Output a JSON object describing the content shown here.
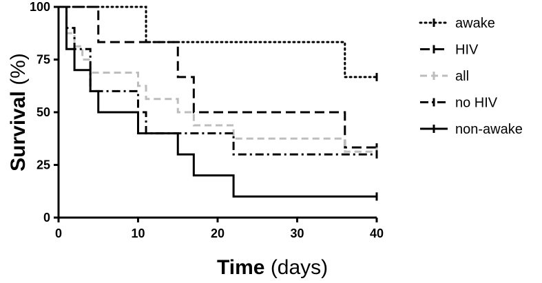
{
  "chart_data": {
    "type": "line",
    "step": "post",
    "xlabel_bold": "Time",
    "xlabel_rest": " (days)",
    "ylabel_bold": "Survival",
    "ylabel_rest": " (%)",
    "xlim": [
      0,
      40
    ],
    "ylim": [
      0,
      100
    ],
    "xticks": [
      0,
      10,
      20,
      30,
      40
    ],
    "yticks": [
      0,
      25,
      50,
      75,
      100
    ],
    "xtick_labels": [
      "0",
      "10",
      "20",
      "30",
      "40"
    ],
    "ytick_labels": [
      "0",
      "25",
      "50",
      "75",
      "100"
    ],
    "grid": false,
    "legend_position": "right",
    "series": [
      {
        "name": "awake",
        "style": "dotted",
        "color": "#000000",
        "x": [
          0,
          11,
          36,
          40
        ],
        "y": [
          100,
          83.3,
          66.7,
          66.7
        ]
      },
      {
        "name": "HIV",
        "style": "dashed",
        "color": "#000000",
        "x": [
          0,
          5,
          15,
          17,
          36,
          40
        ],
        "y": [
          100,
          83.3,
          66.7,
          50,
          33.3,
          33.3
        ]
      },
      {
        "name": "all",
        "style": "dashed-light",
        "color": "#bdbdbd",
        "x": [
          0,
          1,
          2,
          3,
          4,
          5,
          10,
          11,
          15,
          17,
          22,
          36,
          40
        ],
        "y": [
          100,
          87.5,
          81.3,
          75,
          68.8,
          68.8,
          62.5,
          56.3,
          50,
          43.8,
          37.5,
          31.3,
          31.3
        ]
      },
      {
        "name": "no HIV",
        "style": "dashdot",
        "color": "#000000",
        "x": [
          0,
          1,
          2,
          4,
          10,
          11,
          22,
          40
        ],
        "y": [
          100,
          90,
          80,
          60,
          50,
          40,
          30,
          30
        ]
      },
      {
        "name": "non-awake",
        "style": "solid",
        "color": "#000000",
        "x": [
          0,
          1,
          2,
          4,
          5,
          10,
          15,
          17,
          22,
          40
        ],
        "y": [
          100,
          80,
          70,
          60,
          50,
          40,
          30,
          20,
          10,
          10
        ]
      }
    ]
  }
}
